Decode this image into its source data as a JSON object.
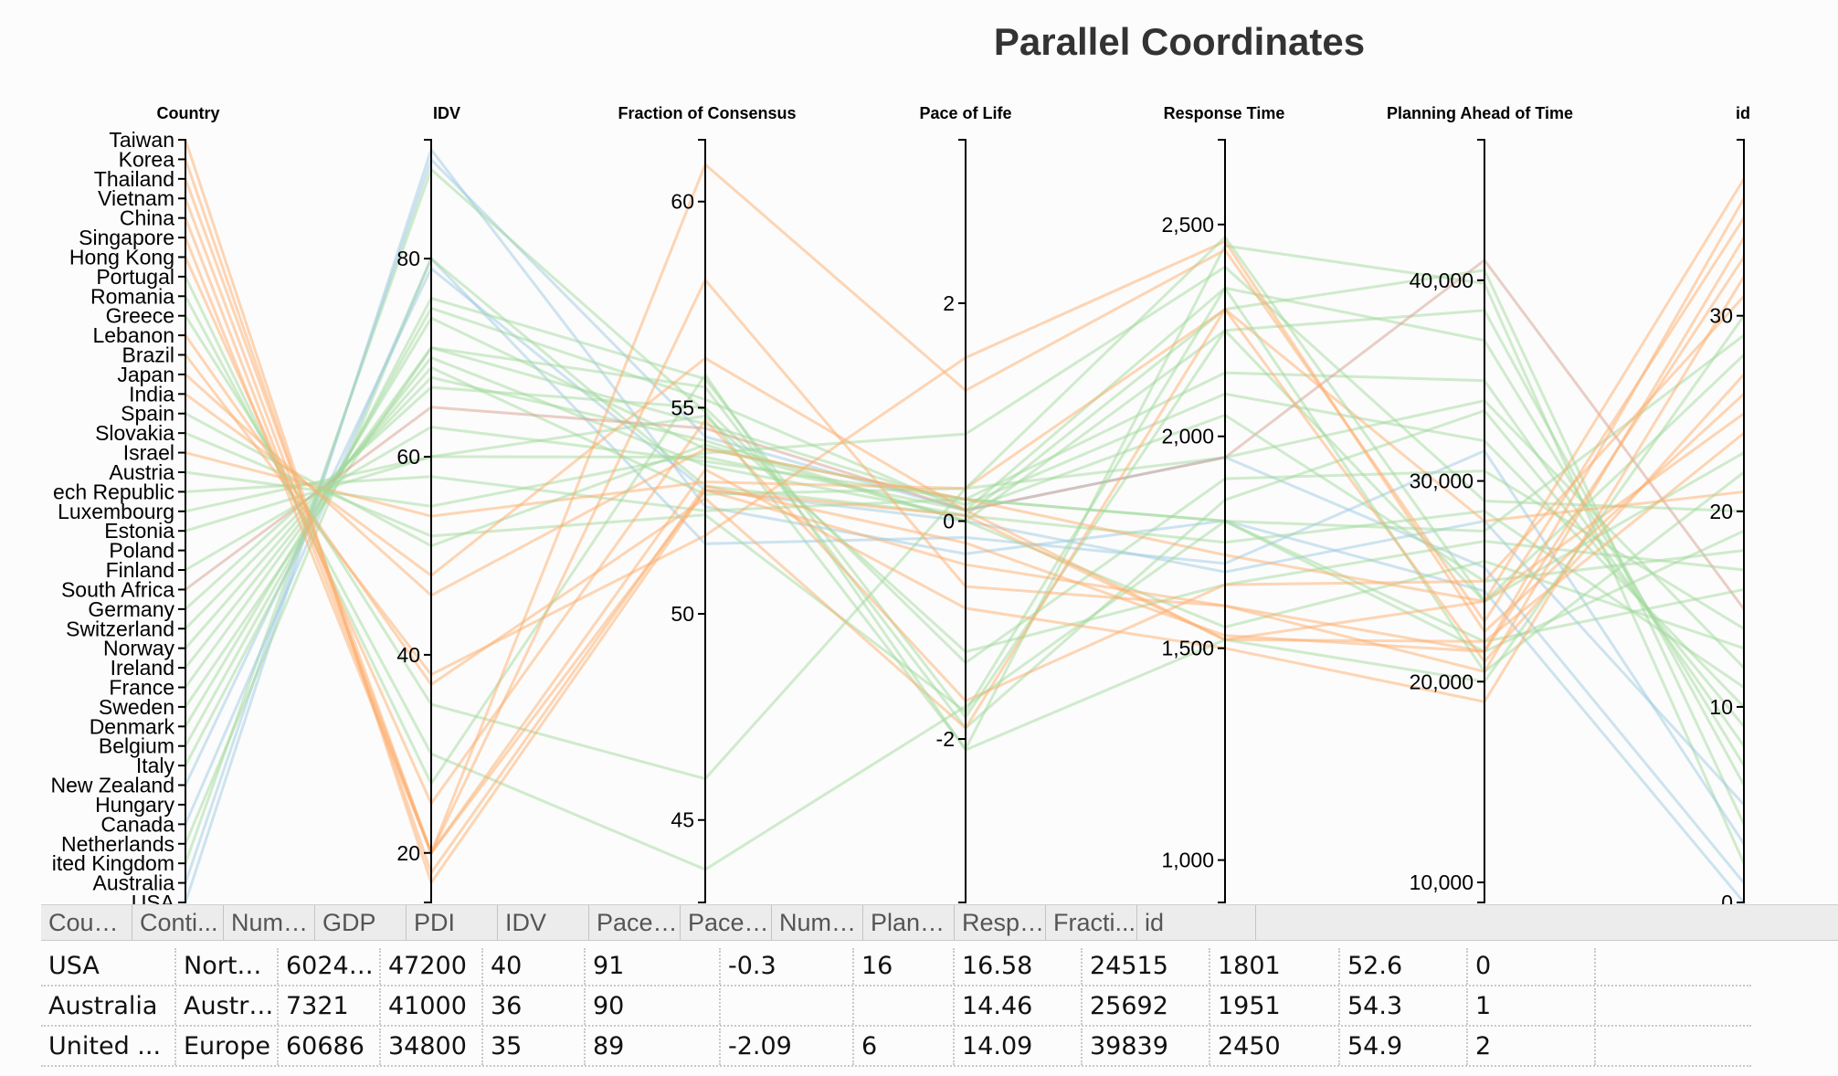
{
  "chart_data": {
    "type": "parallel_coordinates",
    "title": "Parallel Coordinates",
    "colors": {
      "Asia": "#fdae6b",
      "Europe": "#a1d99b",
      "North America": "#9ecae1",
      "Australia": "#9ecae1",
      "South America": "#fdae6b",
      "Africa": "#d6a08f"
    },
    "axes": [
      {
        "label": "Country",
        "type": "categorical",
        "categories": [
          "Taiwan",
          "Korea",
          "Thailand",
          "Vietnam",
          "China",
          "Singapore",
          "Hong Kong",
          "Portugal",
          "Romania",
          "Greece",
          "Lebanon",
          "Brazil",
          "Japan",
          "India",
          "Spain",
          "Slovakia",
          "Israel",
          "Austria",
          "Czech Republic",
          "Luxembourg",
          "Estonia",
          "Poland",
          "Finland",
          "South Africa",
          "Germany",
          "Switzerland",
          "Norway",
          "Ireland",
          "France",
          "Sweden",
          "Denmark",
          "Belgium",
          "Italy",
          "New Zealand",
          "Hungary",
          "Canada",
          "Netherlands",
          "United Kingdom",
          "Australia",
          "USA"
        ],
        "tick_labels": [
          "Taiwan",
          "Korea",
          "Thailand",
          "Vietnam",
          "China",
          "Singapore",
          "Hong Kong",
          "Portugal",
          "Romania",
          "Greece",
          "Lebanon",
          "Brazil",
          "Japan",
          "India",
          "Spain",
          "Slovakia",
          "Israel",
          "Austria",
          "ech Republic",
          "Luxembourg",
          "Estonia",
          "Poland",
          "Finland",
          "South Africa",
          "Germany",
          "Switzerland",
          "Norway",
          "Ireland",
          "France",
          "Sweden",
          "Denmark",
          "Belgium",
          "Italy",
          "New Zealand",
          "Hungary",
          "Canada",
          "Netherlands",
          "ited Kingdom",
          "Australia",
          "USA"
        ]
      },
      {
        "label": "IDV",
        "type": "numeric",
        "range": [
          15,
          92
        ],
        "ticks": [
          20,
          40,
          60,
          80
        ],
        "tick_labels": [
          "20",
          "40",
          "60",
          "80"
        ]
      },
      {
        "label": "Fraction of Consensus",
        "type": "numeric",
        "range": [
          43,
          61.5
        ],
        "ticks": [
          45,
          50,
          55,
          60
        ],
        "tick_labels": [
          "45",
          "50",
          "55",
          "60"
        ]
      },
      {
        "label": "Pace of Life",
        "type": "numeric",
        "range": [
          -3.5,
          3.5
        ],
        "ticks": [
          -2,
          0,
          2
        ],
        "tick_labels": [
          "-2",
          "0",
          "2"
        ]
      },
      {
        "label": "Response Time",
        "type": "numeric",
        "range": [
          900,
          2700
        ],
        "ticks": [
          1000,
          1500,
          2000,
          2500
        ],
        "tick_labels": [
          "1,000",
          "1,500",
          "2,000",
          "2,500"
        ]
      },
      {
        "label": "Planning Ahead of Time",
        "type": "numeric",
        "range": [
          9000,
          47000
        ],
        "ticks": [
          10000,
          20000,
          30000,
          40000
        ],
        "tick_labels": [
          "10,000",
          "20,000",
          "30,000",
          "40,000"
        ]
      },
      {
        "label": "id",
        "type": "numeric",
        "range": [
          0,
          39
        ],
        "ticks": [
          0,
          10,
          20,
          30
        ],
        "tick_labels": [
          "0",
          "10",
          "20",
          "30"
        ]
      }
    ],
    "records": [
      {
        "country": "USA",
        "continent": "North America",
        "idv": 91,
        "consensus": 52.6,
        "pace": -0.3,
        "response": 1801,
        "planning": 24515,
        "id": 0
      },
      {
        "country": "Australia",
        "continent": "Australia",
        "idv": 90,
        "consensus": 54.3,
        "pace": 0.1,
        "response": 1951,
        "planning": 25692,
        "id": 1
      },
      {
        "country": "United Kingdom",
        "continent": "Europe",
        "idv": 89,
        "consensus": 54.9,
        "pace": -2.09,
        "response": 2450,
        "planning": 39839,
        "id": 2
      },
      {
        "country": "Canada",
        "continent": "North America",
        "idv": 80,
        "consensus": 51.7,
        "pace": -0.15,
        "response": 1700,
        "planning": 31500,
        "id": 3
      },
      {
        "country": "Netherlands",
        "continent": "Europe",
        "idv": 80,
        "consensus": 53.1,
        "pace": 0.05,
        "response": 2300,
        "planning": 40500,
        "id": 4
      },
      {
        "country": "New Zealand",
        "continent": "Australia",
        "idv": 79,
        "consensus": 53.0,
        "pace": 0.0,
        "response": 1680,
        "planning": 28000,
        "id": 5
      },
      {
        "country": "Italy",
        "continent": "Europe",
        "idv": 76,
        "consensus": 55.7,
        "pace": -1.8,
        "response": 2250,
        "planning": 38500,
        "id": 6
      },
      {
        "country": "Belgium",
        "continent": "Europe",
        "idv": 75,
        "consensus": 55.2,
        "pace": 0.1,
        "response": 2350,
        "planning": 37000,
        "id": 7
      },
      {
        "country": "Denmark",
        "continent": "Europe",
        "idv": 74,
        "consensus": 54.0,
        "pace": 0.2,
        "response": 2150,
        "planning": 35000,
        "id": 8
      },
      {
        "country": "Sweden",
        "continent": "Europe",
        "idv": 71,
        "consensus": 55.5,
        "pace": -1.9,
        "response": 1850,
        "planning": 33500,
        "id": 9
      },
      {
        "country": "France",
        "continent": "Europe",
        "idv": 71,
        "consensus": 54.6,
        "pace": 0.15,
        "response": 2100,
        "planning": 32000,
        "id": 10
      },
      {
        "country": "Ireland",
        "continent": "Europe",
        "idv": 70,
        "consensus": 53.6,
        "pace": 0.05,
        "response": 1750,
        "planning": 28500,
        "id": 11
      },
      {
        "country": "Norway",
        "continent": "Europe",
        "idv": 69,
        "consensus": 52.9,
        "pace": 0.3,
        "response": 1950,
        "planning": 34000,
        "id": 12
      },
      {
        "country": "Switzerland",
        "continent": "Europe",
        "idv": 68,
        "consensus": 54.2,
        "pace": 0.0,
        "response": 1550,
        "planning": 26000,
        "id": 13
      },
      {
        "country": "Germany",
        "continent": "Europe",
        "idv": 67,
        "consensus": 55.0,
        "pace": -1.3,
        "response": 1900,
        "planning": 30500,
        "id": 14
      },
      {
        "country": "South Africa",
        "continent": "Africa",
        "idv": 65,
        "consensus": 54.5,
        "pace": 0.1,
        "response": 1950,
        "planning": 41000,
        "id": 15
      },
      {
        "country": "Finland",
        "continent": "Europe",
        "idv": 63,
        "consensus": 53.7,
        "pace": 0.2,
        "response": 1800,
        "planning": 22000,
        "id": 16
      },
      {
        "country": "Estonia",
        "continent": "Europe",
        "idv": 60,
        "consensus": 54.8,
        "pace": -1.2,
        "response": 1650,
        "planning": 27000,
        "id": 17
      },
      {
        "country": "Luxembourg",
        "continent": "Europe",
        "idv": 60,
        "consensus": 53.8,
        "pace": 0.1,
        "response": 2050,
        "planning": 25000,
        "id": 18
      },
      {
        "country": "Czech Republic",
        "continent": "Europe",
        "idv": 58,
        "consensus": 52.5,
        "pace": 0.2,
        "response": 1800,
        "planning": 21500,
        "id": 19
      },
      {
        "country": "Austria",
        "continent": "Europe",
        "idv": 55,
        "consensus": 53.9,
        "pace": 0.8,
        "response": 2400,
        "planning": 29000,
        "id": 20
      },
      {
        "country": "Israel",
        "continent": "Asia",
        "idv": 54,
        "consensus": 53.2,
        "pace": 0.3,
        "response": 2300,
        "planning": 28000,
        "id": 21
      },
      {
        "country": "Slovakia",
        "continent": "Europe",
        "idv": 52,
        "consensus": 52.4,
        "pace": -1.75,
        "response": 2350,
        "planning": 20500,
        "id": 22
      },
      {
        "country": "Spain",
        "continent": "Europe",
        "idv": 51,
        "consensus": 54.1,
        "pace": 0.0,
        "response": 2250,
        "planning": 24000,
        "id": 23
      },
      {
        "country": "India",
        "continent": "Asia",
        "idv": 48,
        "consensus": 56.2,
        "pace": 0.1,
        "response": 1520,
        "planning": 22000,
        "id": 24
      },
      {
        "country": "Japan",
        "continent": "Asia",
        "idv": 46,
        "consensus": 54.0,
        "pace": 0.2,
        "response": 1720,
        "planning": 24000,
        "id": 25
      },
      {
        "country": "Brazil",
        "continent": "South America",
        "idv": 38,
        "consensus": 51.9,
        "pace": 1.5,
        "response": 2460,
        "planning": 22500,
        "id": 26
      },
      {
        "country": "Lebanon",
        "continent": "Asia",
        "idv": 37,
        "consensus": 52.8,
        "pace": -1.9,
        "response": 2300,
        "planning": 21000,
        "id": 27
      },
      {
        "country": "Greece",
        "continent": "Europe",
        "idv": 35,
        "consensus": 46.0,
        "pace": 0.3,
        "response": 2470,
        "planning": 24000,
        "id": 28
      },
      {
        "country": "Romania",
        "continent": "Europe",
        "idv": 30,
        "consensus": 43.8,
        "pace": -1.7,
        "response": 1800,
        "planning": 27500,
        "id": 29
      },
      {
        "country": "Portugal",
        "continent": "Europe",
        "idv": 27,
        "consensus": 55.8,
        "pace": -2.1,
        "response": 1520,
        "planning": 20000,
        "id": 30
      },
      {
        "country": "Hong Kong",
        "continent": "Asia",
        "idv": 25,
        "consensus": 54.7,
        "pace": -1.65,
        "response": 1650,
        "planning": 25000,
        "id": 31
      },
      {
        "country": "Singapore",
        "continent": "Asia",
        "idv": 20,
        "consensus": 53.5,
        "pace": -0.8,
        "response": 1500,
        "planning": 19000,
        "id": 32
      },
      {
        "country": "China",
        "continent": "Asia",
        "idv": 20,
        "consensus": 58.1,
        "pace": -0.6,
        "response": 1600,
        "planning": 21500,
        "id": 33
      },
      {
        "country": "Vietnam",
        "continent": "Asia",
        "idv": 20,
        "consensus": 53.0,
        "pace": -0.4,
        "response": 1600,
        "planning": 20500,
        "id": 34
      },
      {
        "country": "Thailand",
        "continent": "Asia",
        "idv": 20,
        "consensus": 60.9,
        "pace": 1.2,
        "response": 2440,
        "planning": 23000,
        "id": 35
      },
      {
        "country": "Korea",
        "continent": "Asia",
        "idv": 18,
        "consensus": 53.1,
        "pace": -0.2,
        "response": 1530,
        "planning": 21500,
        "id": 36
      },
      {
        "country": "Taiwan",
        "continent": "Asia",
        "idv": 17,
        "consensus": 53.0,
        "pace": 0.05,
        "response": 1520,
        "planning": 24000,
        "id": 37
      }
    ]
  },
  "grid": {
    "headers": [
      "Count...",
      "Conti...",
      "Numb...",
      "GDP",
      "PDI",
      "IDV",
      "Pace ...",
      "Pace ...",
      "Numb...",
      "Planni...",
      "Respo...",
      "Fracti...",
      "id"
    ],
    "rows": [
      [
        "USA",
        "North ...",
        "602419",
        "47200",
        "40",
        "91",
        "-0.3",
        "16",
        "16.58",
        "24515",
        "1801",
        "52.6",
        "0"
      ],
      [
        "Australia",
        "Australia",
        "7321",
        "41000",
        "36",
        "90",
        "",
        "",
        "14.46",
        "25692",
        "1951",
        "54.3",
        "1"
      ],
      [
        "United ...",
        "Europe",
        "60686",
        "34800",
        "35",
        "89",
        "-2.09",
        "6",
        "14.09",
        "39839",
        "2450",
        "54.9",
        "2"
      ]
    ]
  }
}
